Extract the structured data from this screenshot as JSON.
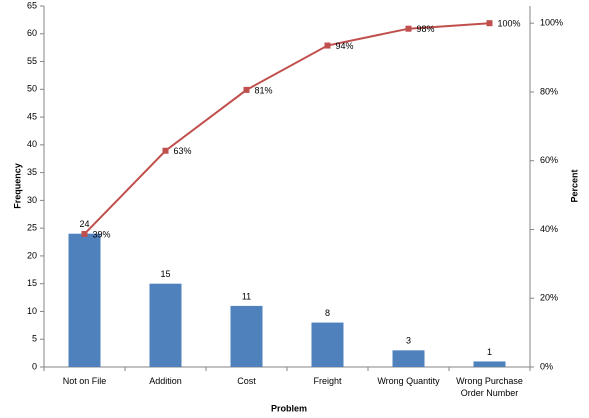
{
  "chart_data": {
    "type": "pareto",
    "x_label": "Problem",
    "y_label": "Frequency",
    "y2_label": "Percent",
    "categories": [
      "Not on File",
      "Addition",
      "Cost",
      "Freight",
      "Wrong Quantity",
      "Wrong Purchase Order Number"
    ],
    "series": [
      {
        "type": "bar",
        "color": "#4f81bd",
        "values": [
          24,
          15,
          11,
          8,
          3,
          1
        ]
      },
      {
        "type": "line",
        "axis": "y2",
        "color": "#c0504d",
        "values": [
          38.7,
          62.9,
          80.6,
          93.5,
          98.4,
          100
        ],
        "value_labels": [
          "39%",
          "63%",
          "81%",
          "94%",
          "98%",
          "100%"
        ]
      }
    ],
    "ylim": [
      0,
      65
    ],
    "yticks": [
      0,
      5,
      10,
      15,
      20,
      25,
      30,
      35,
      40,
      45,
      50,
      55,
      60,
      65
    ],
    "y2lim": [
      0,
      105
    ],
    "y2ticks": [
      {
        "value": 0,
        "label": "0%"
      },
      {
        "value": 20,
        "label": "20%"
      },
      {
        "value": 40,
        "label": "40%"
      },
      {
        "value": 60,
        "label": "60%"
      },
      {
        "value": 80,
        "label": "80%"
      },
      {
        "value": 100,
        "label": "100%"
      }
    ]
  }
}
